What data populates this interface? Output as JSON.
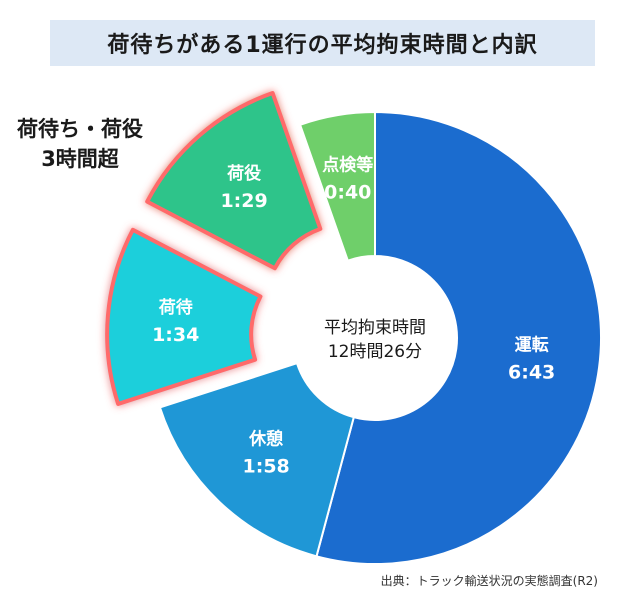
{
  "title": "荷待ちがある1運行の平均拘束時間と内訳",
  "callout": {
    "line1": "荷待ち・荷役",
    "line2": "3時間超"
  },
  "center": {
    "label": "平均拘束時間",
    "value": "12時間26分"
  },
  "source": "出典：トラック輸送状況の実態調査(R2)",
  "chart_data": {
    "type": "pie",
    "variant": "donut",
    "title": "荷待ちがある1運行の平均拘束時間と内訳",
    "total_label": "平均拘束時間 12時間26分",
    "unit": "minutes",
    "slices": [
      {
        "name": "運転",
        "label": "6:43",
        "value": 403,
        "color": "#1b6ccf"
      },
      {
        "name": "休憩",
        "label": "1:58",
        "value": 118,
        "color": "#1f97d6"
      },
      {
        "name": "荷待",
        "label": "1:34",
        "value": 94,
        "color": "#1ecfdb",
        "highlight": true
      },
      {
        "name": "荷役",
        "label": "1:29",
        "value": 89,
        "color": "#2fc48a",
        "highlight": true
      },
      {
        "name": "点検等",
        "label": "0:40",
        "value": 40,
        "color": "#6fcf6a"
      }
    ],
    "highlight_color": "#ff6b6b"
  }
}
